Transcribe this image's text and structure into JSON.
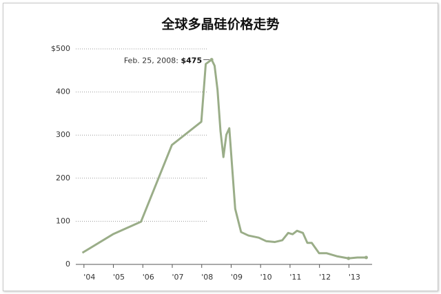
{
  "chart_data": {
    "type": "line",
    "title": "全球多晶硅价格走势",
    "x": [
      2003.76,
      2004.8,
      2005.75,
      2006.8,
      2007.8,
      2007.95,
      2008.15,
      2008.25,
      2008.35,
      2008.45,
      2008.55,
      2008.65,
      2008.75,
      2008.95,
      2009.15,
      2009.4,
      2009.75,
      2010.0,
      2010.3,
      2010.55,
      2010.75,
      2010.9,
      2011.05,
      2011.25,
      2011.4,
      2011.55,
      2011.8,
      2012.05,
      2012.4,
      2012.8,
      2013.1,
      2013.4
    ],
    "series": [
      {
        "color": "#9aad88",
        "values": [
          27,
          70,
          99,
          277,
          331,
          465,
          475,
          461,
          405,
          310,
          249,
          301,
          316,
          129,
          75,
          67,
          62,
          54,
          52,
          56,
          73,
          70,
          78,
          73,
          50,
          50,
          26,
          26,
          19,
          14,
          16,
          16
        ]
      }
    ],
    "xlim": [
      2003.7,
      2013.6
    ],
    "xticks": [
      {
        "value": 2004,
        "label": "'04"
      },
      {
        "value": 2005,
        "label": "'05"
      },
      {
        "value": 2006,
        "label": "'06"
      },
      {
        "value": 2007,
        "label": "'07"
      },
      {
        "value": 2008,
        "label": "'08"
      },
      {
        "value": 2009,
        "label": "'09"
      },
      {
        "value": 2010,
        "label": "'10"
      },
      {
        "value": 2011,
        "label": "'11"
      },
      {
        "value": 2012,
        "label": "'12"
      },
      {
        "value": 2013,
        "label": "'13"
      }
    ],
    "ylim": [
      0,
      500
    ],
    "yticks": [
      0,
      100,
      200,
      300,
      400,
      {
        "value": 500,
        "label": "$500"
      }
    ],
    "grid": true,
    "annotation": {
      "x": 2008.15,
      "value": 475,
      "date_label": "Feb. 25, 2008:",
      "value_label": "$475"
    }
  }
}
